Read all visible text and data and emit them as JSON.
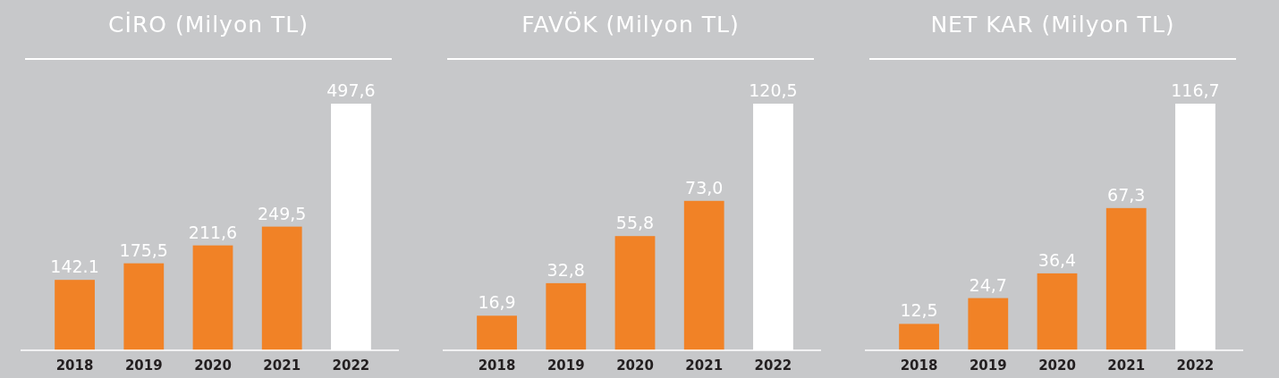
{
  "chart_data": [
    {
      "type": "bar",
      "title": "CİRO (Milyon TL)",
      "categories": [
        "2018",
        "2019",
        "2020",
        "2021",
        "2022"
      ],
      "values": [
        142.1,
        175.5,
        211.6,
        249.5,
        497.6
      ],
      "value_labels": [
        "142.1",
        "175,5",
        "211,6",
        "249,5",
        "497,6"
      ],
      "colors": [
        "#f18226",
        "#f18226",
        "#f18226",
        "#f18226",
        "#ffffff"
      ]
    },
    {
      "type": "bar",
      "title": "FAVÖK (Milyon TL)",
      "categories": [
        "2018",
        "2019",
        "2020",
        "2021",
        "2022"
      ],
      "values": [
        16.9,
        32.8,
        55.8,
        73.0,
        120.5
      ],
      "value_labels": [
        "16,9",
        "32,8",
        "55,8",
        "73,0",
        "120,5"
      ],
      "colors": [
        "#f18226",
        "#f18226",
        "#f18226",
        "#f18226",
        "#ffffff"
      ]
    },
    {
      "type": "bar",
      "title": "NET KAR (Milyon TL)",
      "categories": [
        "2018",
        "2019",
        "2020",
        "2021",
        "2022"
      ],
      "values": [
        12.5,
        24.7,
        36.4,
        67.3,
        116.7
      ],
      "value_labels": [
        "12,5",
        "24,7",
        "36,4",
        "67,3",
        "116,7"
      ],
      "colors": [
        "#f18226",
        "#f18226",
        "#f18226",
        "#f18226",
        "#ffffff"
      ]
    }
  ]
}
